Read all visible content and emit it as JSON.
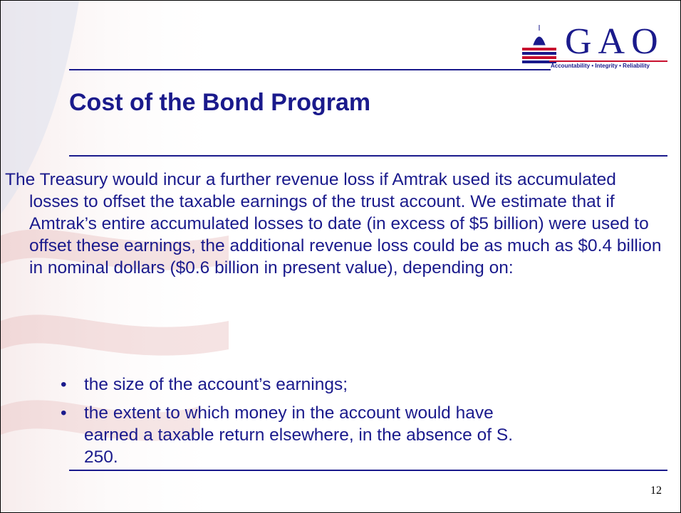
{
  "header": {
    "logo": "GAO",
    "tagline": "Accountability • Integrity • Reliability"
  },
  "title": "Cost of the Bond Program",
  "body": {
    "paragraph": "The Treasury would incur a further revenue loss if Amtrak used its accumulated losses to offset the taxable earnings of the trust account.  We estimate that if Amtrak’s entire accumulated losses to date (in excess of $5 billion) were used to offset these earnings, the additional revenue loss could be as much as $0.4 billion in nominal dollars ($0.6 billion in present value), depending on:",
    "bullets": [
      "the size of the account’s earnings;",
      "the extent to which money in the account would have earned a taxable return elsewhere, in the absence of S. 250."
    ]
  },
  "page_number": "12"
}
